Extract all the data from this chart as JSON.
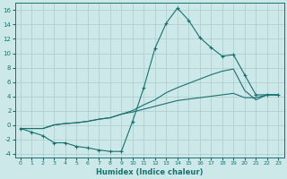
{
  "xlabel": "Humidex (Indice chaleur)",
  "xlim": [
    -0.5,
    23.5
  ],
  "ylim": [
    -4.5,
    17
  ],
  "xticks": [
    0,
    1,
    2,
    3,
    4,
    5,
    6,
    7,
    8,
    9,
    10,
    11,
    12,
    13,
    14,
    15,
    16,
    17,
    18,
    19,
    20,
    21,
    22,
    23
  ],
  "yticks": [
    -4,
    -2,
    0,
    2,
    4,
    6,
    8,
    10,
    12,
    14,
    16
  ],
  "background_color": "#cce8e8",
  "grid_color": "#aacccc",
  "line_color": "#1a7070",
  "line1_x": [
    0,
    1,
    2,
    3,
    4,
    5,
    6,
    7,
    8,
    9,
    10,
    11,
    12,
    13,
    14,
    15,
    16,
    17,
    18,
    19,
    20,
    21,
    22,
    23
  ],
  "line1_y": [
    -0.5,
    -1.0,
    -1.5,
    -2.5,
    -2.5,
    -3.0,
    -3.2,
    -3.5,
    -3.7,
    -3.7,
    0.5,
    5.2,
    10.7,
    14.2,
    16.3,
    14.6,
    12.2,
    10.8,
    9.6,
    9.8,
    7.0,
    4.2,
    4.2,
    4.2
  ],
  "line2_x": [
    0,
    1,
    2,
    3,
    4,
    5,
    6,
    7,
    8,
    9,
    10,
    11,
    12,
    13,
    14,
    15,
    16,
    17,
    18,
    19,
    20,
    21,
    22,
    23
  ],
  "line2_y": [
    -0.5,
    -0.5,
    -0.5,
    0.0,
    0.2,
    0.3,
    0.5,
    0.8,
    1.0,
    1.5,
    2.0,
    2.8,
    3.5,
    4.5,
    5.2,
    5.8,
    6.4,
    7.0,
    7.5,
    7.8,
    4.8,
    3.5,
    4.2,
    4.2
  ],
  "line3_x": [
    0,
    1,
    2,
    3,
    4,
    5,
    6,
    7,
    8,
    9,
    10,
    11,
    12,
    13,
    14,
    15,
    16,
    17,
    18,
    19,
    20,
    21,
    22,
    23
  ],
  "line3_y": [
    -0.5,
    -0.5,
    -0.5,
    0.0,
    0.2,
    0.3,
    0.5,
    0.8,
    1.0,
    1.5,
    1.8,
    2.2,
    2.6,
    3.0,
    3.4,
    3.6,
    3.8,
    4.0,
    4.2,
    4.4,
    3.8,
    3.8,
    4.2,
    4.2
  ]
}
